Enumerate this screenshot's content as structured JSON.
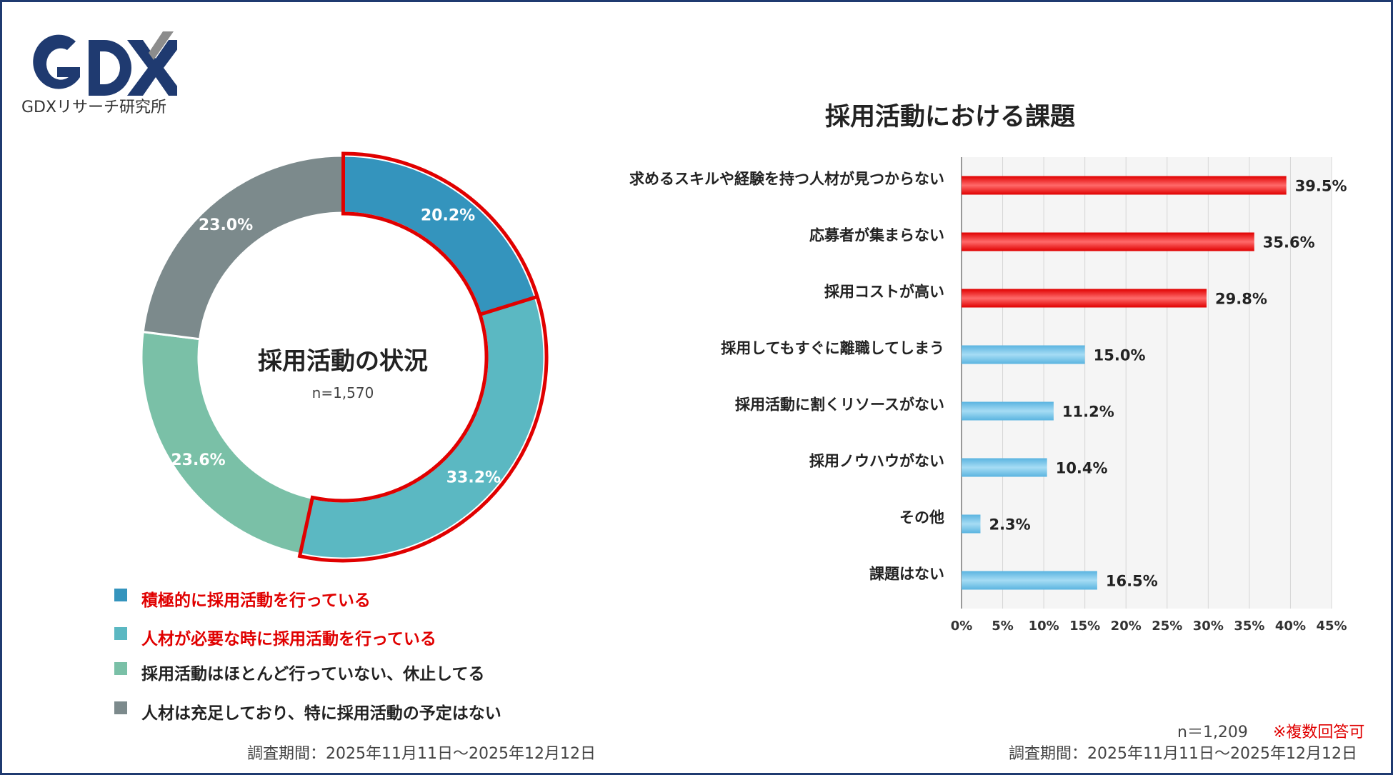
{
  "logo": {
    "caption": "GDXリサーチ研究所"
  },
  "colors": {
    "navy": "#1f3a70",
    "red": "#e00000",
    "blue_bar": "#5ab4e0"
  },
  "donut": {
    "title": "採用活動の状況",
    "n": "n=1,570"
  },
  "legend": [
    {
      "label": "積極的に採用活動を行っている",
      "color": "#3494bd",
      "highlight": true
    },
    {
      "label": "人材が必要な時に採用活動を行っている",
      "color": "#5bb8c2",
      "highlight": true
    },
    {
      "label": "採用活動はほとんど行っていない、休止してる",
      "color": "#7ac0a7",
      "highlight": false
    },
    {
      "label": "人材は充足しており、特に採用活動の予定はない",
      "color": "#7c8a8c",
      "highlight": false
    }
  ],
  "footer": {
    "left_period": "調査期間：2025年11月11日～2025年12月12日",
    "right_period": "調査期間：2025年11月11日～2025年12月12日",
    "right_n": "n＝1,209",
    "right_note": "※複数回答可"
  },
  "chart_data": [
    {
      "type": "pie",
      "title": "採用活動の状況",
      "donut": true,
      "labels": [
        "積極的に採用活動を行っている",
        "人材が必要な時に採用活動を行っている",
        "採用活動はほとんど行っていない、休止してる",
        "人材は充足しており、特に採用活動の予定はない"
      ],
      "values": [
        20.2,
        33.2,
        23.6,
        23.0
      ],
      "value_labels": [
        "20.2%",
        "33.2%",
        "23.6%",
        "23.0%"
      ],
      "colors": [
        "#3494bd",
        "#5bb8c2",
        "#7ac0a7",
        "#7c8a8c"
      ],
      "highlighted": [
        0,
        1
      ],
      "highlight_color": "#e00000"
    },
    {
      "type": "bar",
      "orientation": "horizontal",
      "title": "採用活動における課題",
      "categories": [
        "求めるスキルや経験を持つ人材が見つからない",
        "応募者が集まらない",
        "採用コストが高い",
        "採用してもすぐに離職してしまう",
        "採用活動に割くリソースがない",
        "採用ノウハウがない",
        "その他",
        "課題はない"
      ],
      "values": [
        39.5,
        35.6,
        29.8,
        15.0,
        11.2,
        10.4,
        2.3,
        16.5
      ],
      "value_labels": [
        "39.5%",
        "35.6%",
        "29.8%",
        "15.0%",
        "11.2%",
        "10.4%",
        "2.3%",
        "16.5%"
      ],
      "bar_colors": [
        "#e00000",
        "#e00000",
        "#e00000",
        "#5ab4e0",
        "#5ab4e0",
        "#5ab4e0",
        "#5ab4e0",
        "#5ab4e0"
      ],
      "xlim": [
        0,
        45
      ],
      "xticks": [
        "0%",
        "5%",
        "10%",
        "15%",
        "20%",
        "25%",
        "30%",
        "35%",
        "40%",
        "45%"
      ],
      "grid": true
    }
  ]
}
